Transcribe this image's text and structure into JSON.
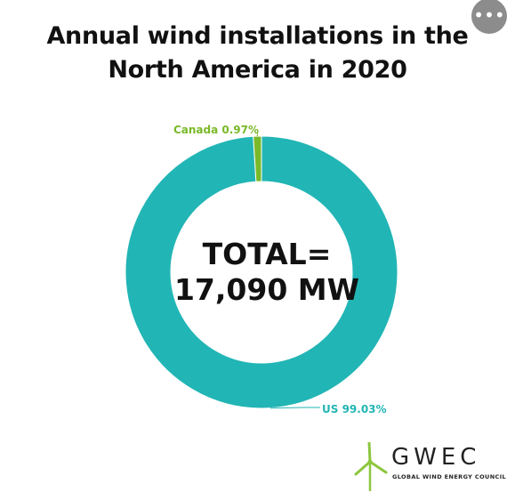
{
  "title": {
    "line1": "Annual wind installations in the",
    "line2": "North America in 2020"
  },
  "center_label": {
    "line1": "TOTAL=",
    "line2": "17,090 MW"
  },
  "more_button_icon": "more-horizontal-icon",
  "logo": {
    "name": "GWEC",
    "tagline": "GLOBAL WIND ENERGY COUNCIL",
    "icon": "wind-turbine-icon",
    "icon_color": "#8DC63F"
  },
  "chart_data": {
    "type": "pie",
    "donut": true,
    "slices": [
      {
        "label": "Canada",
        "value": 0.97,
        "value_label": "0.97%",
        "color": "#7AB929"
      },
      {
        "label": "US",
        "value": 99.03,
        "value_label": "99.03%",
        "color": "#22B5B5"
      }
    ],
    "legend": "none",
    "data_labels": [
      "Canada 0.97%",
      "US 99.03%"
    ]
  }
}
